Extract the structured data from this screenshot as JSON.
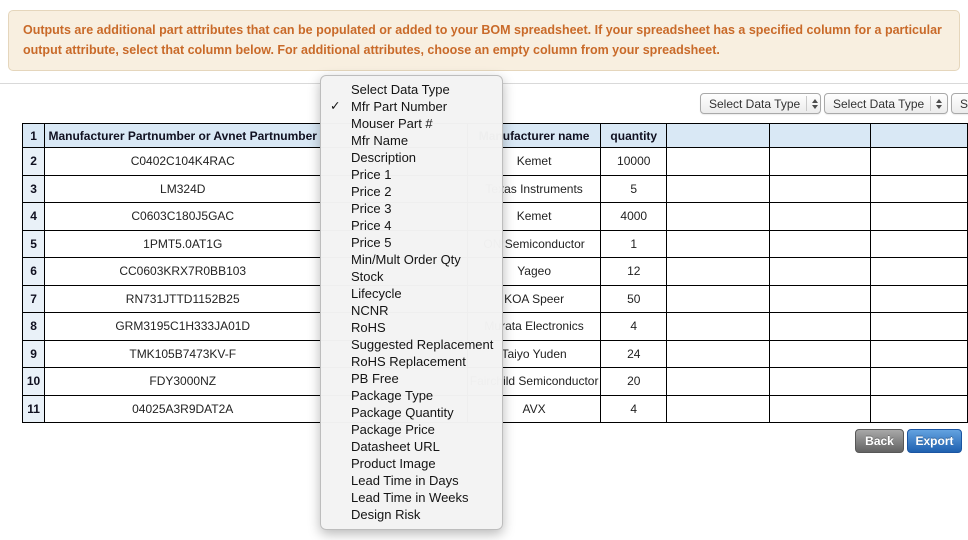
{
  "banner": {
    "text": "Outputs are additional part attributes that can be populated or added to your BOM spreadsheet. If your spreadsheet has a specified column for a particular output attribute, select that column below. For additional attributes, choose an empty column from your spreadsheet."
  },
  "toolbar": {
    "selects": [
      {
        "label": "Select Data Type"
      },
      {
        "label": "Select Data Type"
      },
      {
        "label": "Select Data Type"
      }
    ]
  },
  "menu": {
    "checkmark_glyph": "✓",
    "items": [
      {
        "label": "Select Data Type",
        "checked": false
      },
      {
        "label": "Mfr Part Number",
        "checked": true
      },
      {
        "label": "Mouser Part #",
        "checked": false
      },
      {
        "label": "Mfr Name",
        "checked": false
      },
      {
        "label": "Description",
        "checked": false
      },
      {
        "label": "Price 1",
        "checked": false
      },
      {
        "label": "Price 2",
        "checked": false
      },
      {
        "label": "Price 3",
        "checked": false
      },
      {
        "label": "Price 4",
        "checked": false
      },
      {
        "label": "Price 5",
        "checked": false
      },
      {
        "label": "Min/Mult Order Qty",
        "checked": false
      },
      {
        "label": "Stock",
        "checked": false
      },
      {
        "label": "Lifecycle",
        "checked": false
      },
      {
        "label": "NCNR",
        "checked": false
      },
      {
        "label": "RoHS",
        "checked": false
      },
      {
        "label": "Suggested Replacement",
        "checked": false
      },
      {
        "label": "RoHS Replacement",
        "checked": false
      },
      {
        "label": "PB Free",
        "checked": false
      },
      {
        "label": "Package Type",
        "checked": false
      },
      {
        "label": "Package Quantity",
        "checked": false
      },
      {
        "label": "Package Price",
        "checked": false
      },
      {
        "label": "Datasheet URL",
        "checked": false
      },
      {
        "label": "Product Image",
        "checked": false
      },
      {
        "label": "Lead Time in Days",
        "checked": false
      },
      {
        "label": "Lead Time in Weeks",
        "checked": false
      },
      {
        "label": "Design Risk",
        "checked": false
      }
    ]
  },
  "table": {
    "header": {
      "num": "1",
      "part_col": "Manufacturer Partnumber or Avnet Partnumber",
      "hidden_col": "",
      "mfr_col": "Manufacturer name",
      "qty_col": "quantity",
      "empty_col": ""
    },
    "rows": [
      {
        "num": "2",
        "part": "C0402C104K4RAC",
        "hidden": "",
        "mfr": "Kemet",
        "qty": "10000",
        "extra1": "",
        "extra2": "",
        "extra3": ""
      },
      {
        "num": "3",
        "part": "LM324D",
        "hidden": "",
        "mfr": "Texas Instruments",
        "qty": "5",
        "extra1": "",
        "extra2": "",
        "extra3": ""
      },
      {
        "num": "4",
        "part": "C0603C180J5GAC",
        "hidden": "",
        "mfr": "Kemet",
        "qty": "4000",
        "extra1": "",
        "extra2": "",
        "extra3": ""
      },
      {
        "num": "5",
        "part": "1PMT5.0AT1G",
        "hidden": "",
        "mfr": "ON Semiconductor",
        "qty": "1",
        "extra1": "",
        "extra2": "",
        "extra3": ""
      },
      {
        "num": "6",
        "part": "CC0603KRX7R0BB103",
        "hidden": "",
        "mfr": "Yageo",
        "qty": "12",
        "extra1": "",
        "extra2": "",
        "extra3": ""
      },
      {
        "num": "7",
        "part": "RN731JTTD1152B25",
        "hidden": "",
        "mfr": "KOA Speer",
        "qty": "50",
        "extra1": "",
        "extra2": "",
        "extra3": ""
      },
      {
        "num": "8",
        "part": "GRM3195C1H333JA01D",
        "hidden": "",
        "mfr": "Murata Electronics",
        "qty": "4",
        "extra1": "",
        "extra2": "",
        "extra3": ""
      },
      {
        "num": "9",
        "part": "TMK105B7473KV-F",
        "hidden": "",
        "mfr": "Taiyo Yuden",
        "qty": "24",
        "extra1": "",
        "extra2": "",
        "extra3": ""
      },
      {
        "num": "10",
        "part": "FDY3000NZ",
        "hidden": "",
        "mfr": "Fairchild Semiconductor",
        "qty": "20",
        "extra1": "",
        "extra2": "",
        "extra3": ""
      },
      {
        "num": "11",
        "part": "04025A3R9DAT2A",
        "hidden": "",
        "mfr": "AVX",
        "qty": "4",
        "extra1": "",
        "extra2": "",
        "extra3": ""
      }
    ]
  },
  "footer": {
    "back_label": "Back",
    "export_label": "Export"
  },
  "colors": {
    "banner_background": "#f8efe0",
    "banner_text": "#c96a29",
    "table_header_background": "#d9e8f5",
    "export_button_blue": "#2a68b4",
    "back_button_gray": "#7a7a7a"
  }
}
